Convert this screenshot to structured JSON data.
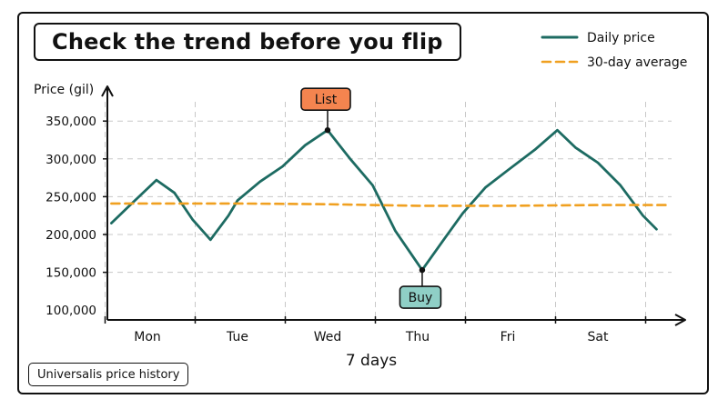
{
  "title": "Check the trend before you flip",
  "source_note": "Universalis price history",
  "colors": {
    "daily": "#1d6b62",
    "average": "#f0a020",
    "list_bg": "#f4844f",
    "buy_bg": "#8fcfc6",
    "grid": "#c8c8c8"
  },
  "chart_data": {
    "type": "line",
    "xlabel": "7 days",
    "ylabel": "Price (gil)",
    "x_ticks": [
      "Mon",
      "Tue",
      "Wed",
      "Thu",
      "Fri",
      "Sat"
    ],
    "y_ticks": [
      "100,000",
      "150,000",
      "200,000",
      "250,000",
      "300,000",
      "350,000"
    ],
    "y_tick_values": [
      100000,
      150000,
      200000,
      250000,
      300000,
      350000
    ],
    "ylim": [
      100000,
      360000
    ],
    "grid": true,
    "legend_position": "top-right",
    "series": [
      {
        "name": "Daily price",
        "style": "solid",
        "points": [
          [
            -0.4,
            215000
          ],
          [
            -0.2,
            238000
          ],
          [
            0.1,
            272000
          ],
          [
            0.3,
            255000
          ],
          [
            0.5,
            220000
          ],
          [
            0.7,
            193000
          ],
          [
            0.9,
            225000
          ],
          [
            1.0,
            245000
          ],
          [
            1.25,
            270000
          ],
          [
            1.5,
            290000
          ],
          [
            1.75,
            318000
          ],
          [
            2.0,
            338000
          ],
          [
            2.25,
            300000
          ],
          [
            2.5,
            265000
          ],
          [
            2.75,
            205000
          ],
          [
            3.05,
            153000
          ],
          [
            3.3,
            195000
          ],
          [
            3.5,
            228000
          ],
          [
            3.75,
            262000
          ],
          [
            4.0,
            285000
          ],
          [
            4.3,
            312000
          ],
          [
            4.55,
            338000
          ],
          [
            4.75,
            315000
          ],
          [
            5.0,
            295000
          ],
          [
            5.25,
            265000
          ],
          [
            5.5,
            225000
          ],
          [
            5.65,
            207000
          ]
        ]
      },
      {
        "name": "30-day average",
        "style": "dashed",
        "points": [
          [
            -0.4,
            241000
          ],
          [
            1.0,
            241000
          ],
          [
            2.0,
            240000
          ],
          [
            3.0,
            238000
          ],
          [
            4.0,
            238000
          ],
          [
            5.0,
            239000
          ],
          [
            5.8,
            239000
          ]
        ]
      }
    ],
    "annotations": [
      {
        "label": "List",
        "x": 2.0,
        "y": 338000,
        "position": "above"
      },
      {
        "label": "Buy",
        "x": 3.05,
        "y": 153000,
        "position": "below"
      }
    ]
  }
}
